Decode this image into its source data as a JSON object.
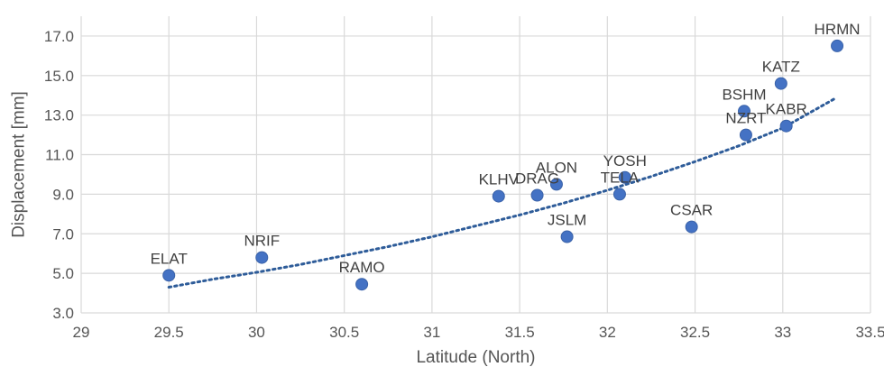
{
  "chart_data": {
    "type": "scatter",
    "title": "",
    "xlabel": "Latitude (North)",
    "ylabel": "Displacement [mm]",
    "xlim": [
      29,
      33.5
    ],
    "ylim": [
      3.0,
      18.0
    ],
    "x_ticks": [
      29,
      29.5,
      30,
      30.5,
      31,
      31.5,
      32,
      32.5,
      33,
      33.5
    ],
    "x_tick_labels": [
      "29",
      "29.5",
      "30",
      "30.5",
      "31",
      "31.5",
      "32",
      "32.5",
      "33",
      "33.5"
    ],
    "y_ticks": [
      3.0,
      5.0,
      7.0,
      9.0,
      11.0,
      13.0,
      15.0,
      17.0
    ],
    "y_tick_labels": [
      "3.0",
      "5.0",
      "7.0",
      "9.0",
      "11.0",
      "13.0",
      "15.0",
      "17.0"
    ],
    "grid": true,
    "legend": "none",
    "marker_color": "#4472C4",
    "marker_edge_color": "#3A62A8",
    "trendline_color": "#2E5C99",
    "grid_color": "#D9D9D9",
    "points": [
      {
        "label": "ELAT",
        "x": 29.5,
        "y": 4.9
      },
      {
        "label": "NRIF",
        "x": 30.03,
        "y": 5.8
      },
      {
        "label": "RAMO",
        "x": 30.6,
        "y": 4.45
      },
      {
        "label": "KLHV",
        "x": 31.38,
        "y": 8.9
      },
      {
        "label": "DRAG",
        "x": 31.6,
        "y": 8.95
      },
      {
        "label": "ALON",
        "x": 31.71,
        "y": 9.5
      },
      {
        "label": "JSLM",
        "x": 31.77,
        "y": 6.85
      },
      {
        "label": "TELA",
        "x": 32.07,
        "y": 9.0
      },
      {
        "label": "YOSH",
        "x": 32.1,
        "y": 9.85
      },
      {
        "label": "CSAR",
        "x": 32.48,
        "y": 7.35
      },
      {
        "label": "NZRT",
        "x": 32.79,
        "y": 12.0
      },
      {
        "label": "BSHM",
        "x": 32.78,
        "y": 13.2
      },
      {
        "label": "KATZ",
        "x": 32.99,
        "y": 14.6
      },
      {
        "label": "KABR",
        "x": 33.02,
        "y": 12.45
      },
      {
        "label": "HRMN",
        "x": 33.31,
        "y": 16.5
      }
    ],
    "trendline": {
      "type": "polynomial",
      "x": [
        29.5,
        29.75,
        30.0,
        30.25,
        30.5,
        30.75,
        31.0,
        31.25,
        31.5,
        31.75,
        32.0,
        32.25,
        32.5,
        32.75,
        33.0,
        33.3
      ],
      "y": [
        4.3,
        4.7,
        5.05,
        5.45,
        5.9,
        6.35,
        6.85,
        7.4,
        7.95,
        8.55,
        9.2,
        9.9,
        10.65,
        11.45,
        12.35,
        13.85
      ]
    }
  }
}
